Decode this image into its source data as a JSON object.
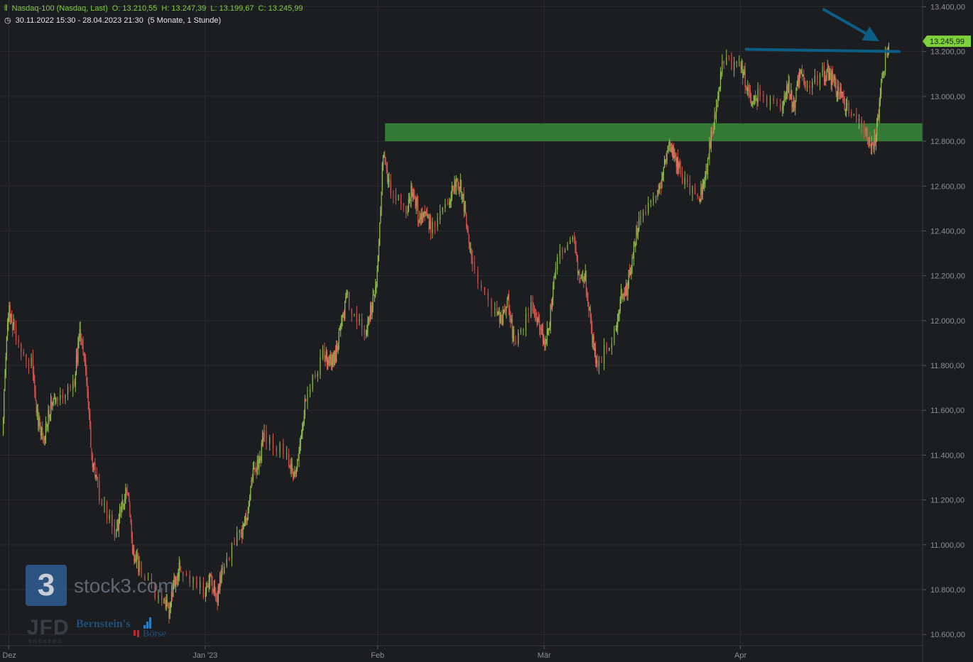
{
  "header": {
    "instrument": "Nasdaq-100 (Nasdaq, Last)",
    "open": "O: 13.210,55",
    "high": "H: 13.247,39",
    "low": "L: 13.199,67",
    "close": "C: 13.245,99",
    "period": "30.11.2022 15:30 - 28.04.2023 21:30",
    "interval": "(5 Monate, 1 Stunde)"
  },
  "branding": {
    "logo_glyph": "3",
    "logo_text": "stock3.com",
    "jfd": "JFD",
    "jfd_sub": "BROKERS",
    "bernstein": "Bernstein's",
    "boerse": "Börse"
  },
  "colors": {
    "background": "#1c1d21",
    "grid": "#2a2b30",
    "up": "#8fbf4a",
    "down": "#d9534f",
    "zone": "#3a8a3a",
    "trendline": "#0b5e84",
    "last_price": "#7ed13a"
  },
  "chart_data": {
    "type": "candlestick",
    "title": "",
    "last_price_label": "13.245,99",
    "y_axis": {
      "range": [
        10550,
        13430
      ],
      "ticks": [
        "13.400,00",
        "13.200,00",
        "13.000,00",
        "12.800,00",
        "12.600,00",
        "12.400,00",
        "12.200,00",
        "12.000,00",
        "11.800,00",
        "11.600,00",
        "11.400,00",
        "11.200,00",
        "11.000,00",
        "10.800,00",
        "10.600,00"
      ],
      "tick_values": [
        13400,
        13200,
        13000,
        12800,
        12600,
        12400,
        12200,
        12000,
        11800,
        11600,
        11400,
        11200,
        11000,
        10800,
        10600
      ],
      "position": "right"
    },
    "x_axis": {
      "labels": [
        "Dez",
        "Jan '23",
        "Feb",
        "Mär",
        "Apr"
      ],
      "label_dates": [
        "2022-12-01",
        "2023-01-03",
        "2023-02-01",
        "2023-03-01",
        "2023-04-03"
      ],
      "start": "2022-11-30",
      "end": "2023-04-28"
    },
    "price_path": [
      [
        "2022-11-30",
        11500
      ],
      [
        "2022-12-01",
        12050
      ],
      [
        "2022-12-02",
        11950
      ],
      [
        "2022-12-05",
        11800
      ],
      [
        "2022-12-06",
        11550
      ],
      [
        "2022-12-07",
        11480
      ],
      [
        "2022-12-08",
        11600
      ],
      [
        "2022-12-09",
        11650
      ],
      [
        "2022-12-12",
        11700
      ],
      [
        "2022-12-13",
        11950
      ],
      [
        "2022-12-14",
        11800
      ],
      [
        "2022-12-15",
        11400
      ],
      [
        "2022-12-16",
        11250
      ],
      [
        "2022-12-19",
        11050
      ],
      [
        "2022-12-20",
        11150
      ],
      [
        "2022-12-21",
        11250
      ],
      [
        "2022-12-22",
        10950
      ],
      [
        "2022-12-23",
        10900
      ],
      [
        "2022-12-27",
        10750
      ],
      [
        "2022-12-28",
        10700
      ],
      [
        "2022-12-29",
        10850
      ],
      [
        "2022-12-30",
        10900
      ],
      [
        "2023-01-03",
        10800
      ],
      [
        "2023-01-04",
        10850
      ],
      [
        "2023-01-05",
        10750
      ],
      [
        "2023-01-06",
        10900
      ],
      [
        "2023-01-09",
        11050
      ],
      [
        "2023-01-10",
        11100
      ],
      [
        "2023-01-11",
        11300
      ],
      [
        "2023-01-12",
        11350
      ],
      [
        "2023-01-13",
        11500
      ],
      [
        "2023-01-17",
        11400
      ],
      [
        "2023-01-18",
        11300
      ],
      [
        "2023-01-19",
        11450
      ],
      [
        "2023-01-20",
        11650
      ],
      [
        "2023-01-23",
        11850
      ],
      [
        "2023-01-24",
        11800
      ],
      [
        "2023-01-25",
        11850
      ],
      [
        "2023-01-26",
        12000
      ],
      [
        "2023-01-27",
        12100
      ],
      [
        "2023-01-30",
        11950
      ],
      [
        "2023-01-31",
        12050
      ],
      [
        "2023-02-01",
        12200
      ],
      [
        "2023-02-02",
        12750
      ],
      [
        "2023-02-03",
        12600
      ],
      [
        "2023-02-06",
        12500
      ],
      [
        "2023-02-07",
        12600
      ],
      [
        "2023-02-08",
        12450
      ],
      [
        "2023-02-09",
        12500
      ],
      [
        "2023-02-10",
        12400
      ],
      [
        "2023-02-13",
        12550
      ],
      [
        "2023-02-14",
        12600
      ],
      [
        "2023-02-15",
        12600
      ],
      [
        "2023-02-16",
        12450
      ],
      [
        "2023-02-17",
        12250
      ],
      [
        "2023-02-21",
        12050
      ],
      [
        "2023-02-22",
        12000
      ],
      [
        "2023-02-23",
        12100
      ],
      [
        "2023-02-24",
        11900
      ],
      [
        "2023-02-27",
        12050
      ],
      [
        "2023-02-28",
        12000
      ],
      [
        "2023-03-01",
        11900
      ],
      [
        "2023-03-02",
        12000
      ],
      [
        "2023-03-03",
        12250
      ],
      [
        "2023-03-06",
        12350
      ],
      [
        "2023-03-07",
        12200
      ],
      [
        "2023-03-08",
        12200
      ],
      [
        "2023-03-09",
        11950
      ],
      [
        "2023-03-10",
        11800
      ],
      [
        "2023-03-13",
        11950
      ],
      [
        "2023-03-14",
        12100
      ],
      [
        "2023-03-15",
        12150
      ],
      [
        "2023-03-16",
        12300
      ],
      [
        "2023-03-17",
        12450
      ],
      [
        "2023-03-20",
        12550
      ],
      [
        "2023-03-21",
        12650
      ],
      [
        "2023-03-22",
        12800
      ],
      [
        "2023-03-23",
        12750
      ],
      [
        "2023-03-24",
        12650
      ],
      [
        "2023-03-27",
        12550
      ],
      [
        "2023-03-28",
        12600
      ],
      [
        "2023-03-29",
        12800
      ],
      [
        "2023-03-30",
        12950
      ],
      [
        "2023-03-31",
        13150
      ],
      [
        "2023-04-03",
        13150
      ],
      [
        "2023-04-04",
        13050
      ],
      [
        "2023-04-05",
        12950
      ],
      [
        "2023-04-06",
        13000
      ],
      [
        "2023-04-10",
        12950
      ],
      [
        "2023-04-11",
        13050
      ],
      [
        "2023-04-12",
        12950
      ],
      [
        "2023-04-13",
        13100
      ],
      [
        "2023-04-14",
        13050
      ],
      [
        "2023-04-17",
        13100
      ],
      [
        "2023-04-18",
        13100
      ],
      [
        "2023-04-19",
        13050
      ],
      [
        "2023-04-20",
        13000
      ],
      [
        "2023-04-21",
        12950
      ],
      [
        "2023-04-24",
        12850
      ],
      [
        "2023-04-25",
        12750
      ],
      [
        "2023-04-26",
        12850
      ],
      [
        "2023-04-27",
        13100
      ],
      [
        "2023-04-28",
        13246
      ]
    ],
    "annotations": [
      {
        "type": "zone",
        "y_low": 12800,
        "y_high": 12880,
        "from": "2023-02-02",
        "to": "2023-04-28",
        "color": "#3a8a3a"
      },
      {
        "type": "trendline",
        "from": [
          "2023-04-03",
          13210
        ],
        "to": [
          "2023-04-28",
          13200
        ],
        "color": "#0b5e84"
      },
      {
        "type": "arrow",
        "from": [
          "2023-04-24",
          13390
        ],
        "to": [
          "2023-04-28",
          13265
        ],
        "color": "#0b5e84"
      }
    ],
    "grid": true,
    "legend": "none"
  }
}
